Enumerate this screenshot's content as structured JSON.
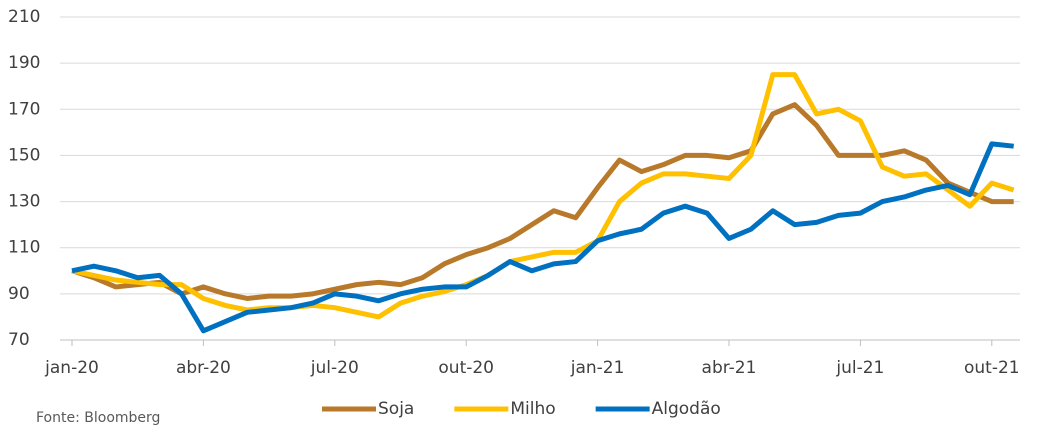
{
  "chart_data": {
    "type": "line",
    "categories": [
      "jan-20",
      null,
      null,
      null,
      null,
      null,
      "abr-20",
      null,
      null,
      null,
      null,
      null,
      "jul-20",
      null,
      null,
      null,
      null,
      null,
      "out-20",
      null,
      null,
      null,
      null,
      null,
      "jan-21",
      null,
      null,
      null,
      null,
      null,
      "abr-21",
      null,
      null,
      null,
      null,
      null,
      "jul-21",
      null,
      null,
      null,
      null,
      null,
      "out-21",
      null
    ],
    "series": [
      {
        "name": "Soja",
        "color": "#b87a2a",
        "values": [
          100,
          97,
          93,
          94,
          95,
          90,
          93,
          90,
          88,
          89,
          89,
          90,
          92,
          94,
          95,
          94,
          97,
          103,
          107,
          110,
          114,
          120,
          126,
          123,
          136,
          148,
          143,
          146,
          150,
          150,
          149,
          152,
          168,
          172,
          163,
          150,
          150,
          150,
          152,
          148,
          138,
          134,
          130,
          130
        ]
      },
      {
        "name": "Milho",
        "color": "#ffc000",
        "values": [
          100,
          98,
          96,
          95,
          94,
          94,
          88,
          85,
          83,
          84,
          84,
          85,
          84,
          82,
          80,
          86,
          89,
          91,
          94,
          98,
          104,
          106,
          108,
          108,
          113,
          130,
          138,
          142,
          142,
          141,
          140,
          150,
          185,
          185,
          168,
          170,
          165,
          145,
          141,
          142,
          135,
          128,
          138,
          135
        ]
      },
      {
        "name": "Algodão",
        "color": "#0070c0",
        "values": [
          100,
          102,
          100,
          97,
          98,
          90,
          74,
          78,
          82,
          83,
          84,
          86,
          90,
          89,
          87,
          90,
          92,
          93,
          93,
          98,
          104,
          100,
          103,
          104,
          113,
          116,
          118,
          125,
          128,
          125,
          114,
          118,
          126,
          120,
          121,
          124,
          125,
          130,
          132,
          135,
          137,
          133,
          155,
          154
        ]
      }
    ],
    "ylim": [
      70,
      210
    ],
    "yticks": [
      70,
      90,
      110,
      130,
      150,
      170,
      190,
      210
    ],
    "grid": true,
    "legend": "bottom",
    "source": "Fonte: Bloomberg"
  }
}
